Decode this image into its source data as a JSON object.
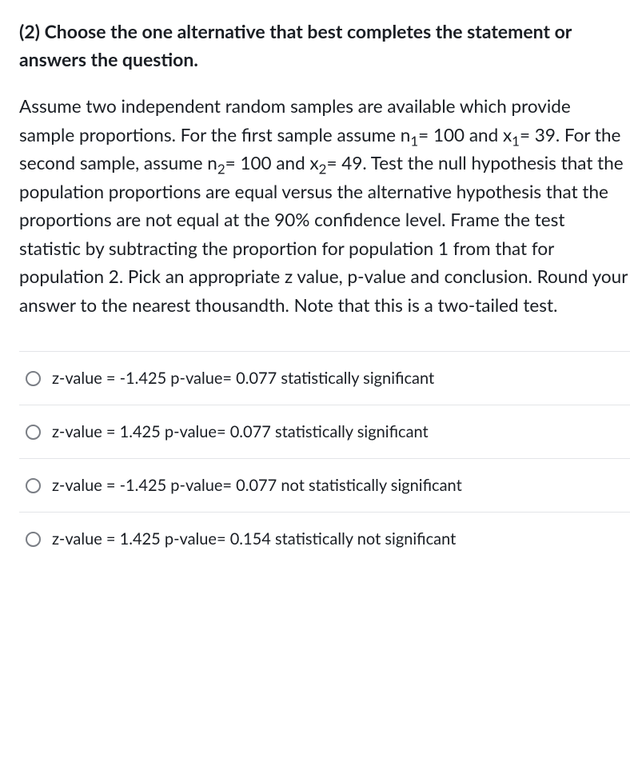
{
  "question": {
    "number": "(2)",
    "heading": "Choose the one alternative that best completes the statement or answers the question.",
    "body_pre": "Assume two independent random samples are available which provide sample proportions. For the first sample assume n",
    "sub1": "1",
    "body_mid1": "= 100 and x",
    "sub2": "1",
    "body_mid2": "= 39. For the second sample, assume n",
    "sub3": "2",
    "body_mid3": "= 100 and x",
    "sub4": "2",
    "body_post": "= 49. Test the null hypothesis that the population proportions are equal versus the alternative hypothesis that the proportions are not equal at the 90% confidence level.   Frame the test statistic by subtracting the proportion for population 1 from that for population 2.   Pick an appropriate z value, p-value and conclusion.  Round your answer to the nearest thousandth. Note that this is a two-tailed test."
  },
  "options": [
    {
      "label": "z-value = -1.425  p-value= 0.077  statistically significant"
    },
    {
      "label": "z-value =  1.425  p-value= 0.077 statistically significant"
    },
    {
      "label": "z-value = -1.425  p-value= 0.077  not statistically significant"
    },
    {
      "label": "z-value = 1.425  p-value= 0.154  statistically not significant"
    }
  ],
  "colors": {
    "text": "#1a1e24",
    "divider": "#e3e5e8",
    "radio_border": "#7a7e85",
    "background": "#ffffff"
  }
}
